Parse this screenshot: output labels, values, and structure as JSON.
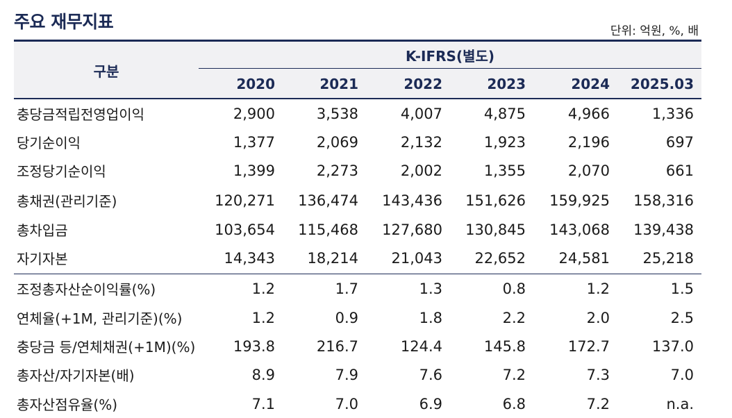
{
  "title": "주요 재무지표",
  "unit": "단위: 억원, %, 배",
  "header": {
    "category": "구분",
    "group": "K-IFRS(별도)",
    "years": [
      "2020",
      "2021",
      "2022",
      "2023",
      "2024",
      "2025.03"
    ]
  },
  "rows": [
    {
      "label": "충당금적립전영업이익",
      "values": [
        "2,900",
        "3,538",
        "4,007",
        "4,875",
        "4,966",
        "1,336"
      ]
    },
    {
      "label": "당기순이익",
      "values": [
        "1,377",
        "2,069",
        "2,132",
        "1,923",
        "2,196",
        "697"
      ]
    },
    {
      "label": "조정당기순이익",
      "values": [
        "1,399",
        "2,273",
        "2,002",
        "1,355",
        "2,070",
        "661"
      ]
    },
    {
      "label": "총채권(관리기준)",
      "values": [
        "120,271",
        "136,474",
        "143,436",
        "151,626",
        "159,925",
        "158,316"
      ]
    },
    {
      "label": "총차입금",
      "values": [
        "103,654",
        "115,468",
        "127,680",
        "130,845",
        "143,068",
        "139,438"
      ]
    },
    {
      "label": "자기자본",
      "values": [
        "14,343",
        "18,214",
        "21,043",
        "22,652",
        "24,581",
        "25,218"
      ]
    },
    {
      "label": "조정총자산순이익률(%)",
      "values": [
        "1.2",
        "1.7",
        "1.3",
        "0.8",
        "1.2",
        "1.5"
      ]
    },
    {
      "label": "연체율(+1M, 관리기준)(%)",
      "values": [
        "1.2",
        "0.9",
        "1.8",
        "2.2",
        "2.0",
        "2.5"
      ]
    },
    {
      "label": "충당금 등/연체채권(+1M)(%)",
      "values": [
        "193.8",
        "216.7",
        "124.4",
        "145.8",
        "172.7",
        "137.0"
      ]
    },
    {
      "label": "총자산/자기자본(배)",
      "values": [
        "8.9",
        "7.9",
        "7.6",
        "7.2",
        "7.3",
        "7.0"
      ]
    },
    {
      "label": "총자산점유율(%)",
      "values": [
        "7.1",
        "7.0",
        "6.9",
        "6.8",
        "7.2",
        "n.a."
      ]
    }
  ]
}
